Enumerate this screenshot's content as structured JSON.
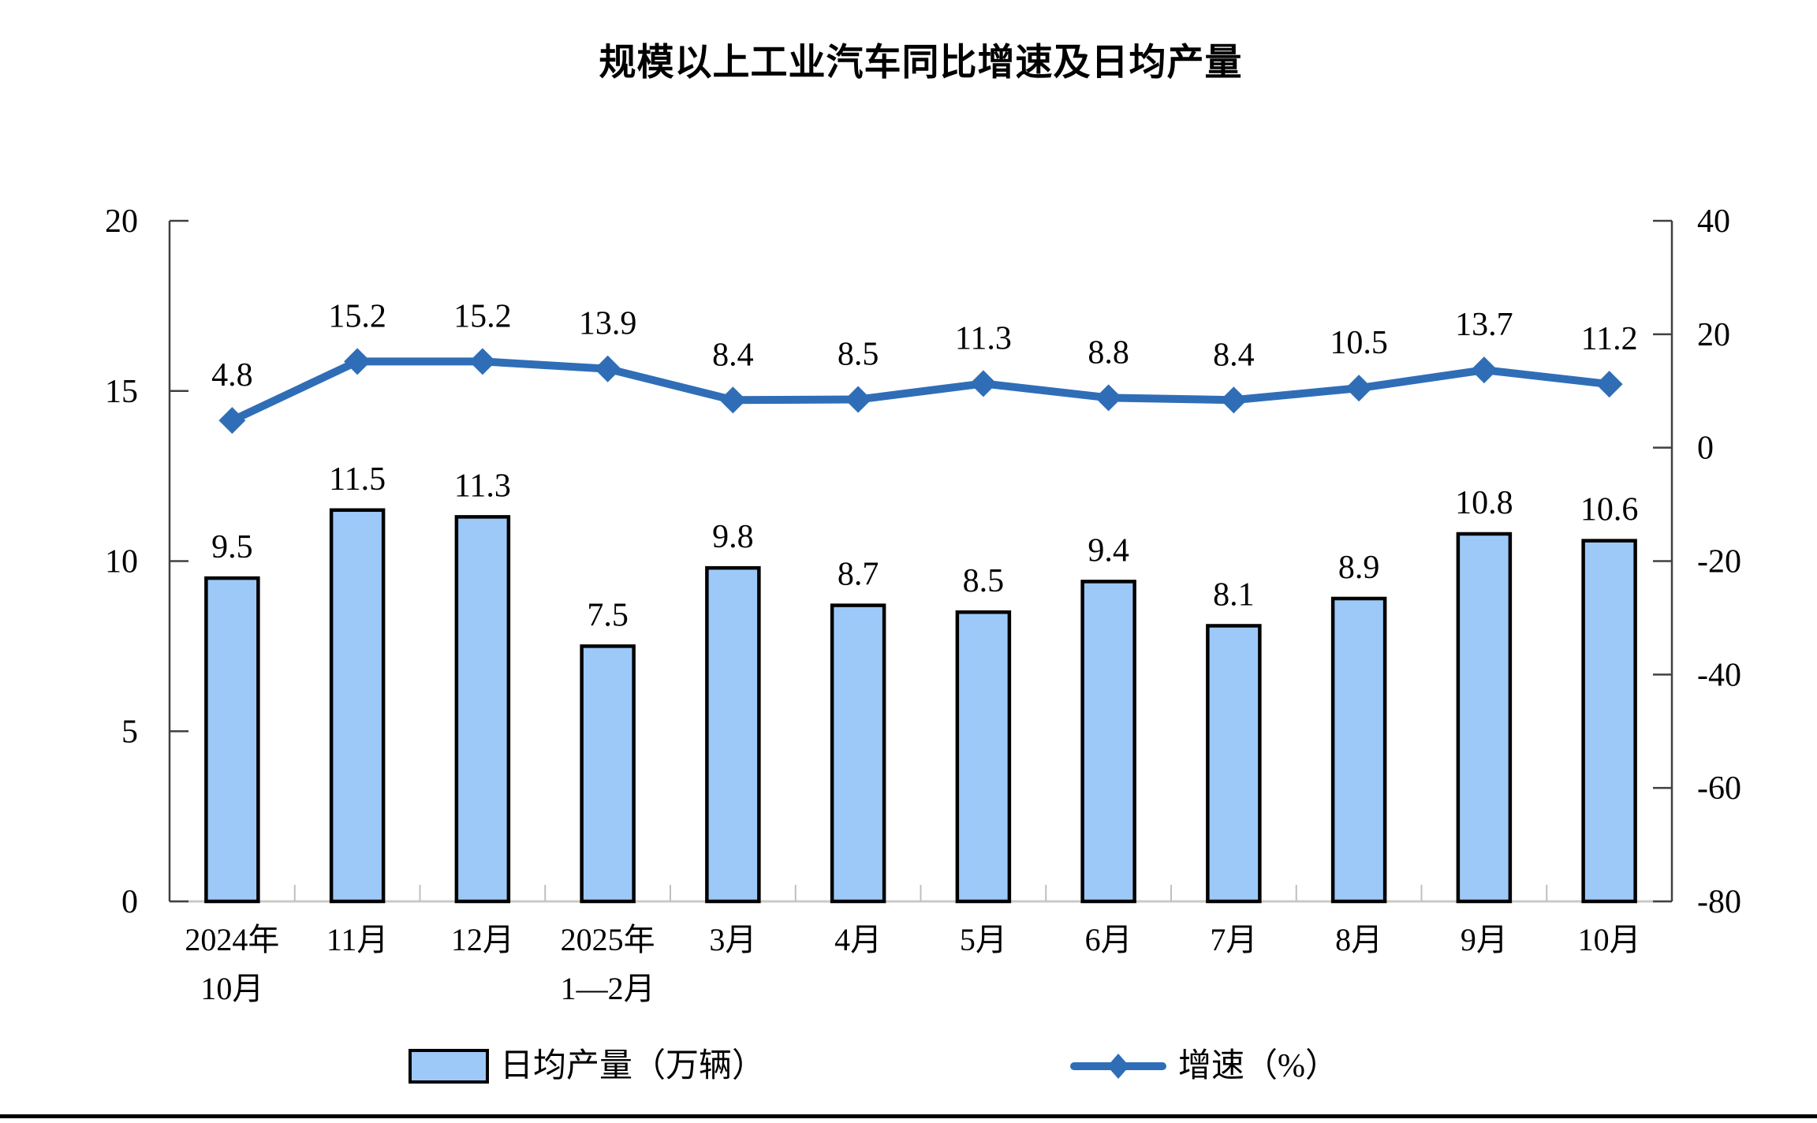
{
  "page": {
    "background": "#FFFFFF"
  },
  "chart_data": {
    "type": "bar",
    "title": "规模以上工业汽车同比增速及日均产量",
    "categories": [
      [
        "2024年",
        "10月"
      ],
      [
        "11月"
      ],
      [
        "12月"
      ],
      [
        "2025年",
        "1—2月"
      ],
      [
        "3月"
      ],
      [
        "4月"
      ],
      [
        "5月"
      ],
      [
        "6月"
      ],
      [
        "7月"
      ],
      [
        "8月"
      ],
      [
        "9月"
      ],
      [
        "10月"
      ]
    ],
    "series": [
      {
        "name": "日均产量（万辆）",
        "type": "bar",
        "axis": "left",
        "values": [
          9.5,
          11.5,
          11.3,
          7.5,
          9.8,
          8.7,
          8.5,
          9.4,
          8.1,
          8.9,
          10.8,
          10.6
        ],
        "fill": "#9CC9F8",
        "stroke": "#000000"
      },
      {
        "name": "增速（%）",
        "type": "line",
        "axis": "right",
        "marker": "diamond",
        "values": [
          4.8,
          15.2,
          15.2,
          13.9,
          8.4,
          8.5,
          11.3,
          8.8,
          8.4,
          10.5,
          13.7,
          11.2
        ],
        "color": "#2F6EB7"
      }
    ],
    "left_axis": {
      "min": 0,
      "max": 20,
      "tick_values": [
        0,
        5,
        10,
        15,
        20
      ]
    },
    "right_axis": {
      "min": -80,
      "max": 40,
      "tick_values": [
        -80,
        -60,
        -40,
        -20,
        0,
        20,
        40
      ]
    },
    "legend": {
      "position": "bottom",
      "items": [
        "日均产量（万辆）",
        "增速（%）"
      ]
    },
    "grid": false,
    "colors": {
      "y_axis_line": "#404040",
      "x_axis_line": "#C9C9C9",
      "boundary_tick": "#BFBFBF",
      "text": "#000000"
    }
  }
}
